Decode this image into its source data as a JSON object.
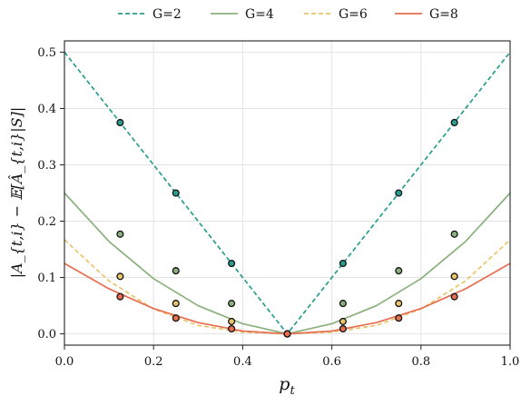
{
  "chart_data": {
    "type": "line",
    "title": "",
    "xlabel": "p_t",
    "ylabel": "|A_{t,i} − 𝔼[Â_{t,i}|S]|",
    "xlim": [
      0.0,
      1.0
    ],
    "ylim": [
      -0.02,
      0.52
    ],
    "xticks": [
      "0.0",
      "0.2",
      "0.4",
      "0.6",
      "0.8",
      "1.0"
    ],
    "yticks": [
      "0.0",
      "0.1",
      "0.2",
      "0.3",
      "0.4",
      "0.5"
    ],
    "grid": true,
    "legend_position": "top",
    "series": [
      {
        "name": "G=2",
        "color": "#2a9d8f",
        "line_style": "dashed",
        "curve_x": [
          0.0,
          0.1,
          0.2,
          0.3,
          0.4,
          0.5,
          0.6,
          0.7,
          0.8,
          0.9,
          1.0
        ],
        "curve_y": [
          0.5,
          0.4,
          0.3,
          0.2,
          0.1,
          0.0,
          0.1,
          0.2,
          0.3,
          0.4,
          0.5
        ],
        "points_x": [
          0.125,
          0.25,
          0.375,
          0.5,
          0.625,
          0.75,
          0.875
        ],
        "points_y": [
          0.375,
          0.25,
          0.125,
          0.0,
          0.125,
          0.25,
          0.375
        ]
      },
      {
        "name": "G=4",
        "color": "#8ab17d",
        "line_style": "solid",
        "curve_x": [
          0.0,
          0.1,
          0.2,
          0.3,
          0.4,
          0.5,
          0.6,
          0.7,
          0.8,
          0.9,
          1.0
        ],
        "curve_y": [
          0.25,
          0.164,
          0.098,
          0.05,
          0.018,
          0.0,
          0.018,
          0.05,
          0.098,
          0.164,
          0.25
        ],
        "points_x": [
          0.125,
          0.25,
          0.375,
          0.5,
          0.625,
          0.75,
          0.875
        ],
        "points_y": [
          0.177,
          0.112,
          0.054,
          0.0,
          0.054,
          0.112,
          0.177
        ]
      },
      {
        "name": "G=6",
        "color": "#e9c46a",
        "line_style": "dashed",
        "curve_x": [
          0.0,
          0.1,
          0.2,
          0.3,
          0.4,
          0.5,
          0.6,
          0.7,
          0.8,
          0.9,
          1.0
        ],
        "curve_y": [
          0.167,
          0.094,
          0.044,
          0.015,
          0.003,
          0.0,
          0.003,
          0.015,
          0.044,
          0.094,
          0.167
        ],
        "points_x": [
          0.125,
          0.25,
          0.375,
          0.5,
          0.625,
          0.75,
          0.875
        ],
        "points_y": [
          0.102,
          0.054,
          0.022,
          0.0,
          0.022,
          0.054,
          0.102
        ]
      },
      {
        "name": "G=8",
        "color": "#e76f51",
        "line_style": "solid",
        "curve_x": [
          0.0,
          0.1,
          0.2,
          0.3,
          0.4,
          0.5,
          0.6,
          0.7,
          0.8,
          0.9,
          1.0
        ],
        "curve_y": [
          0.125,
          0.08,
          0.045,
          0.02,
          0.005,
          0.0,
          0.005,
          0.02,
          0.045,
          0.08,
          0.125
        ],
        "points_x": [
          0.125,
          0.25,
          0.375,
          0.5,
          0.625,
          0.75,
          0.875
        ],
        "points_y": [
          0.066,
          0.028,
          0.009,
          0.0,
          0.009,
          0.028,
          0.066
        ]
      }
    ]
  }
}
